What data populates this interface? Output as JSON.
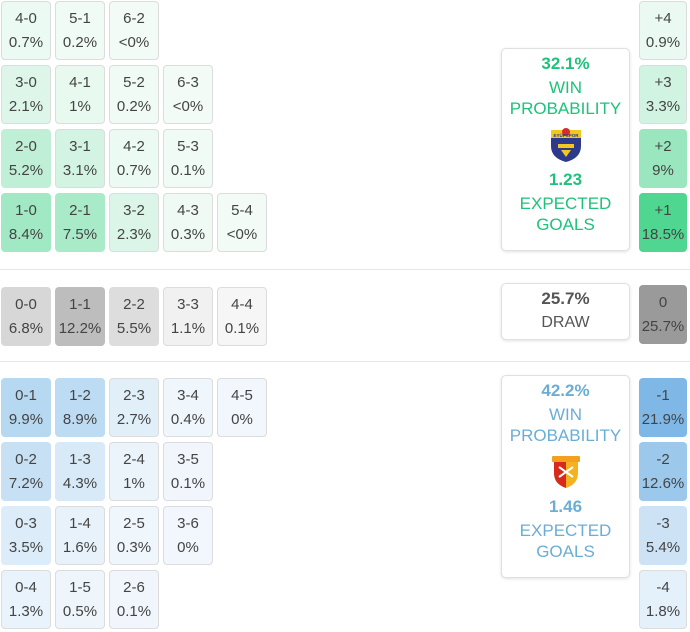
{
  "colors": {
    "home_accent": "#1ec27a",
    "away_accent": "#6aaed6",
    "draw_accent": "#555555"
  },
  "home_scores": [
    {
      "score": "4-0",
      "pct": "0.7%",
      "level": 0.04
    },
    {
      "score": "5-1",
      "pct": "0.2%",
      "level": 0.01
    },
    {
      "score": "6-2",
      "pct": "<0%",
      "level": 0.0
    },
    {
      "score": "3-0",
      "pct": "2.1%",
      "level": 0.13
    },
    {
      "score": "4-1",
      "pct": "1%",
      "level": 0.06
    },
    {
      "score": "5-2",
      "pct": "0.2%",
      "level": 0.01
    },
    {
      "score": "6-3",
      "pct": "<0%",
      "level": 0.0
    },
    {
      "score": "2-0",
      "pct": "5.2%",
      "level": 0.31
    },
    {
      "score": "3-1",
      "pct": "3.1%",
      "level": 0.19
    },
    {
      "score": "4-2",
      "pct": "0.7%",
      "level": 0.04
    },
    {
      "score": "5-3",
      "pct": "0.1%",
      "level": 0.01
    },
    {
      "score": "1-0",
      "pct": "8.4%",
      "level": 0.5
    },
    {
      "score": "2-1",
      "pct": "7.5%",
      "level": 0.45
    },
    {
      "score": "3-2",
      "pct": "2.3%",
      "level": 0.14
    },
    {
      "score": "4-3",
      "pct": "0.3%",
      "level": 0.02
    },
    {
      "score": "5-4",
      "pct": "<0%",
      "level": 0.0
    }
  ],
  "draw_scores": [
    {
      "score": "0-0",
      "pct": "6.8%",
      "level": 0.41
    },
    {
      "score": "1-1",
      "pct": "12.2%",
      "level": 0.73
    },
    {
      "score": "2-2",
      "pct": "5.5%",
      "level": 0.33
    },
    {
      "score": "3-3",
      "pct": "1.1%",
      "level": 0.07
    },
    {
      "score": "4-4",
      "pct": "0.1%",
      "level": 0.01
    }
  ],
  "away_scores": [
    {
      "score": "0-1",
      "pct": "9.9%",
      "level": 0.59
    },
    {
      "score": "1-2",
      "pct": "8.9%",
      "level": 0.53
    },
    {
      "score": "2-3",
      "pct": "2.7%",
      "level": 0.16
    },
    {
      "score": "3-4",
      "pct": "0.4%",
      "level": 0.02
    },
    {
      "score": "4-5",
      "pct": "0%",
      "level": 0.0
    },
    {
      "score": "0-2",
      "pct": "7.2%",
      "level": 0.43
    },
    {
      "score": "1-3",
      "pct": "4.3%",
      "level": 0.26
    },
    {
      "score": "2-4",
      "pct": "1%",
      "level": 0.06
    },
    {
      "score": "3-5",
      "pct": "0.1%",
      "level": 0.01
    },
    {
      "score": "0-3",
      "pct": "3.5%",
      "level": 0.21
    },
    {
      "score": "1-4",
      "pct": "1.6%",
      "level": 0.1
    },
    {
      "score": "2-5",
      "pct": "0.3%",
      "level": 0.02
    },
    {
      "score": "3-6",
      "pct": "0%",
      "level": 0.0
    },
    {
      "score": "0-4",
      "pct": "1.3%",
      "level": 0.08
    },
    {
      "score": "1-5",
      "pct": "0.5%",
      "level": 0.03
    },
    {
      "score": "2-6",
      "pct": "0.1%",
      "level": 0.01
    }
  ],
  "margins": [
    {
      "label": "+4",
      "pct": "0.9%",
      "level": 0.05
    },
    {
      "label": "+3",
      "pct": "3.3%",
      "level": 0.2
    },
    {
      "label": "+2",
      "pct": "9%",
      "level": 0.54
    },
    {
      "label": "+1",
      "pct": "18.5%",
      "level": 1.0
    },
    {
      "label": "0",
      "pct": "25.7%",
      "level": 1.0
    },
    {
      "label": "-1",
      "pct": "21.9%",
      "level": 1.0
    },
    {
      "label": "-2",
      "pct": "12.6%",
      "level": 0.75
    },
    {
      "label": "-3",
      "pct": "5.4%",
      "level": 0.32
    },
    {
      "label": "-4",
      "pct": "1.8%",
      "level": 0.11
    }
  ],
  "home_card": {
    "win_pct": "32.1%",
    "win_label_1": "WIN",
    "win_label_2": "PROBABILITY",
    "logo_text": "EYÜPSPOR",
    "logo_icon": "eyupspor-crest-icon",
    "xg": "1.23",
    "xg_label_1": "EXPECTED",
    "xg_label_2": "GOALS"
  },
  "draw_card": {
    "pct": "25.7%",
    "label": "DRAW"
  },
  "away_card": {
    "win_pct": "42.2%",
    "win_label_1": "WIN",
    "win_label_2": "PROBABILITY",
    "logo_icon": "goztepe-crest-icon",
    "xg": "1.46",
    "xg_label_1": "EXPECTED",
    "xg_label_2": "GOALS"
  }
}
